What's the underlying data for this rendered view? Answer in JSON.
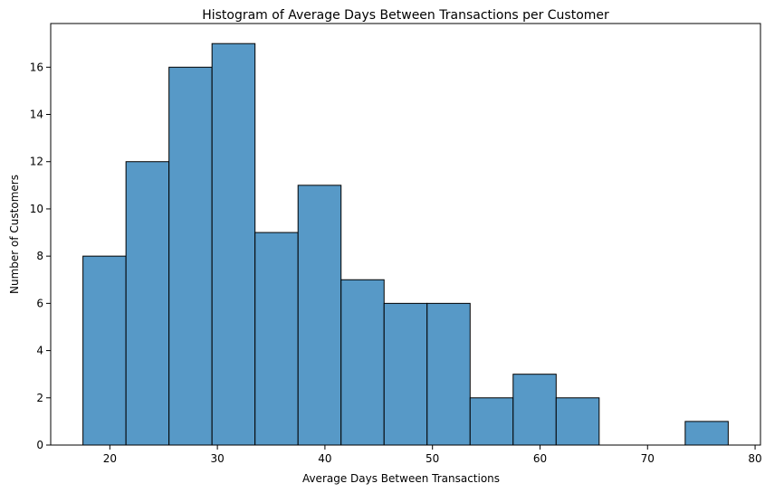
{
  "chart_data": {
    "type": "bar",
    "title": "Histogram of Average Days Between Transactions per Customer",
    "xlabel": "Average Days Between Transactions",
    "ylabel": "Number of Customers",
    "bin_edges": [
      17.5,
      21.5,
      25.5,
      29.5,
      33.5,
      37.5,
      41.5,
      45.5,
      49.5,
      53.5,
      57.5,
      61.5,
      65.5,
      69.5,
      73.5,
      77.5
    ],
    "values": [
      8,
      12,
      16,
      17,
      9,
      11,
      7,
      6,
      6,
      2,
      3,
      2,
      0,
      0,
      1
    ],
    "xlim": [
      14.5,
      80.5
    ],
    "ylim": [
      0,
      17.85
    ],
    "xticks": [
      20,
      30,
      40,
      50,
      60,
      70,
      80
    ],
    "yticks": [
      0,
      2,
      4,
      6,
      8,
      10,
      12,
      14,
      16
    ],
    "bar_color": "#5799c7",
    "edge_color": "#000000",
    "grid": false
  }
}
